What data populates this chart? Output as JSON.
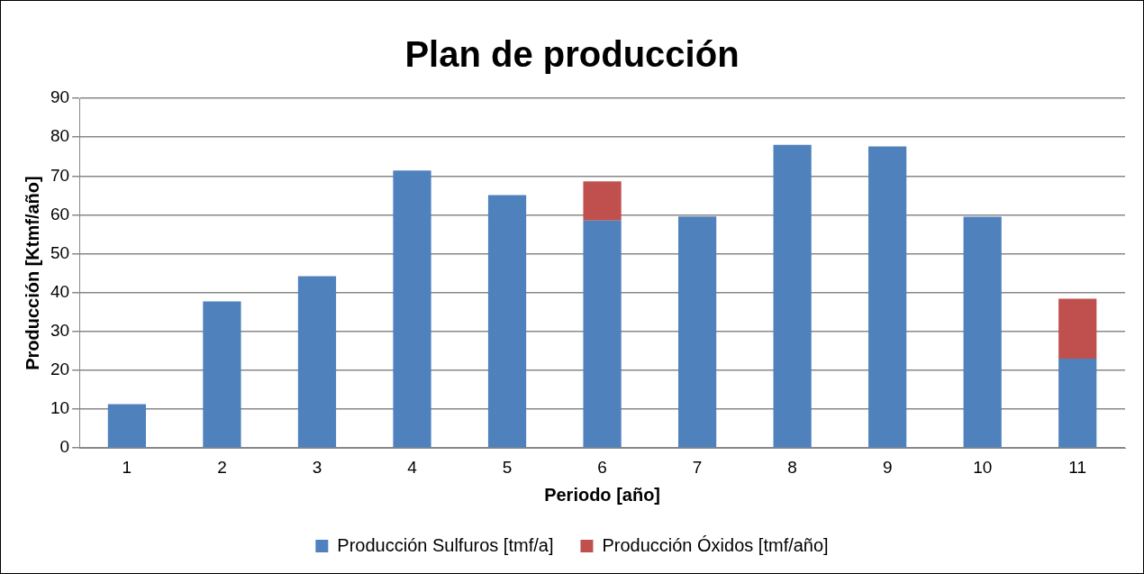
{
  "chart_data": {
    "type": "bar",
    "title": "Plan de producción",
    "xlabel": "Periodo [año]",
    "ylabel": "Producción [Ktmf/año]",
    "categories": [
      "1",
      "2",
      "3",
      "4",
      "5",
      "6",
      "7",
      "8",
      "9",
      "10",
      "11"
    ],
    "series": [
      {
        "name": "Producción Sulfuros [tmf/a]",
        "color": "#4f81bd",
        "values": [
          11.3,
          37.7,
          44.2,
          71.4,
          65.1,
          58.5,
          59.6,
          78.0,
          77.6,
          59.5,
          23.0
        ]
      },
      {
        "name": "Producción Óxidos [tmf/año]",
        "color": "#c0504d",
        "values": [
          null,
          null,
          null,
          null,
          null,
          10.1,
          null,
          null,
          null,
          null,
          15.4
        ]
      }
    ],
    "stacked": true,
    "ylim": [
      0,
      90
    ],
    "yticks": [
      0,
      10,
      20,
      30,
      40,
      50,
      60,
      70,
      80,
      90
    ],
    "grid": "y",
    "legend": "bottom"
  }
}
